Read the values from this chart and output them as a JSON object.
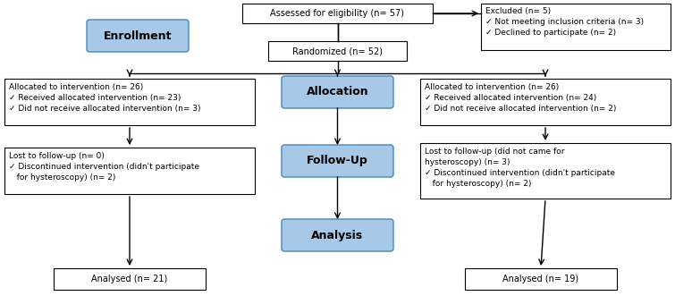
{
  "bg_color": "#ffffff",
  "blue_box_color": "#a8c8e8",
  "blue_box_edge": "#4488bb",
  "white_box_edge": "#000000",
  "white_box_fill": "#ffffff",
  "arrow_color": "#000000",
  "enrollment_label": "Enrollment",
  "allocation_label": "Allocation",
  "followup_label": "Follow-Up",
  "analysis_label": "Analysis",
  "eligibility_text": "Assessed for eligibility (n= 57)",
  "randomized_text": "Randomized (n= 52)",
  "excluded_text": "Excluded (n= 5)\n✓ Not meeting inclusion criteria (n= 3)\n✓ Declined to participate (n= 2)",
  "left_alloc_text": "Allocated to intervention (n= 26)\n✓ Received allocated intervention (n= 23)\n✓ Did not receive allocated intervention (n= 3)",
  "right_alloc_text": "Allocated to intervention (n= 26)\n✓ Received allocated intervention (n= 24)\n✓ Did not receive allocated intervention (n= 2)",
  "left_followup_text": "Lost to follow-up (n= 0)\n✓ Discontinued intervention (didn't participate\n   for hysteroscopy) (n= 2)",
  "right_followup_text": "Lost to follow-up (did not came for\nhysteroscopy) (n= 3)\n✓ Discontinued intervention (didn't participate\n   for hysteroscopy) (n= 2)",
  "left_analysis_text": "Analysed (n= 21)",
  "right_analysis_text": "Analysed (n= 19)",
  "figw": 7.55,
  "figh": 3.31,
  "dpi": 100
}
